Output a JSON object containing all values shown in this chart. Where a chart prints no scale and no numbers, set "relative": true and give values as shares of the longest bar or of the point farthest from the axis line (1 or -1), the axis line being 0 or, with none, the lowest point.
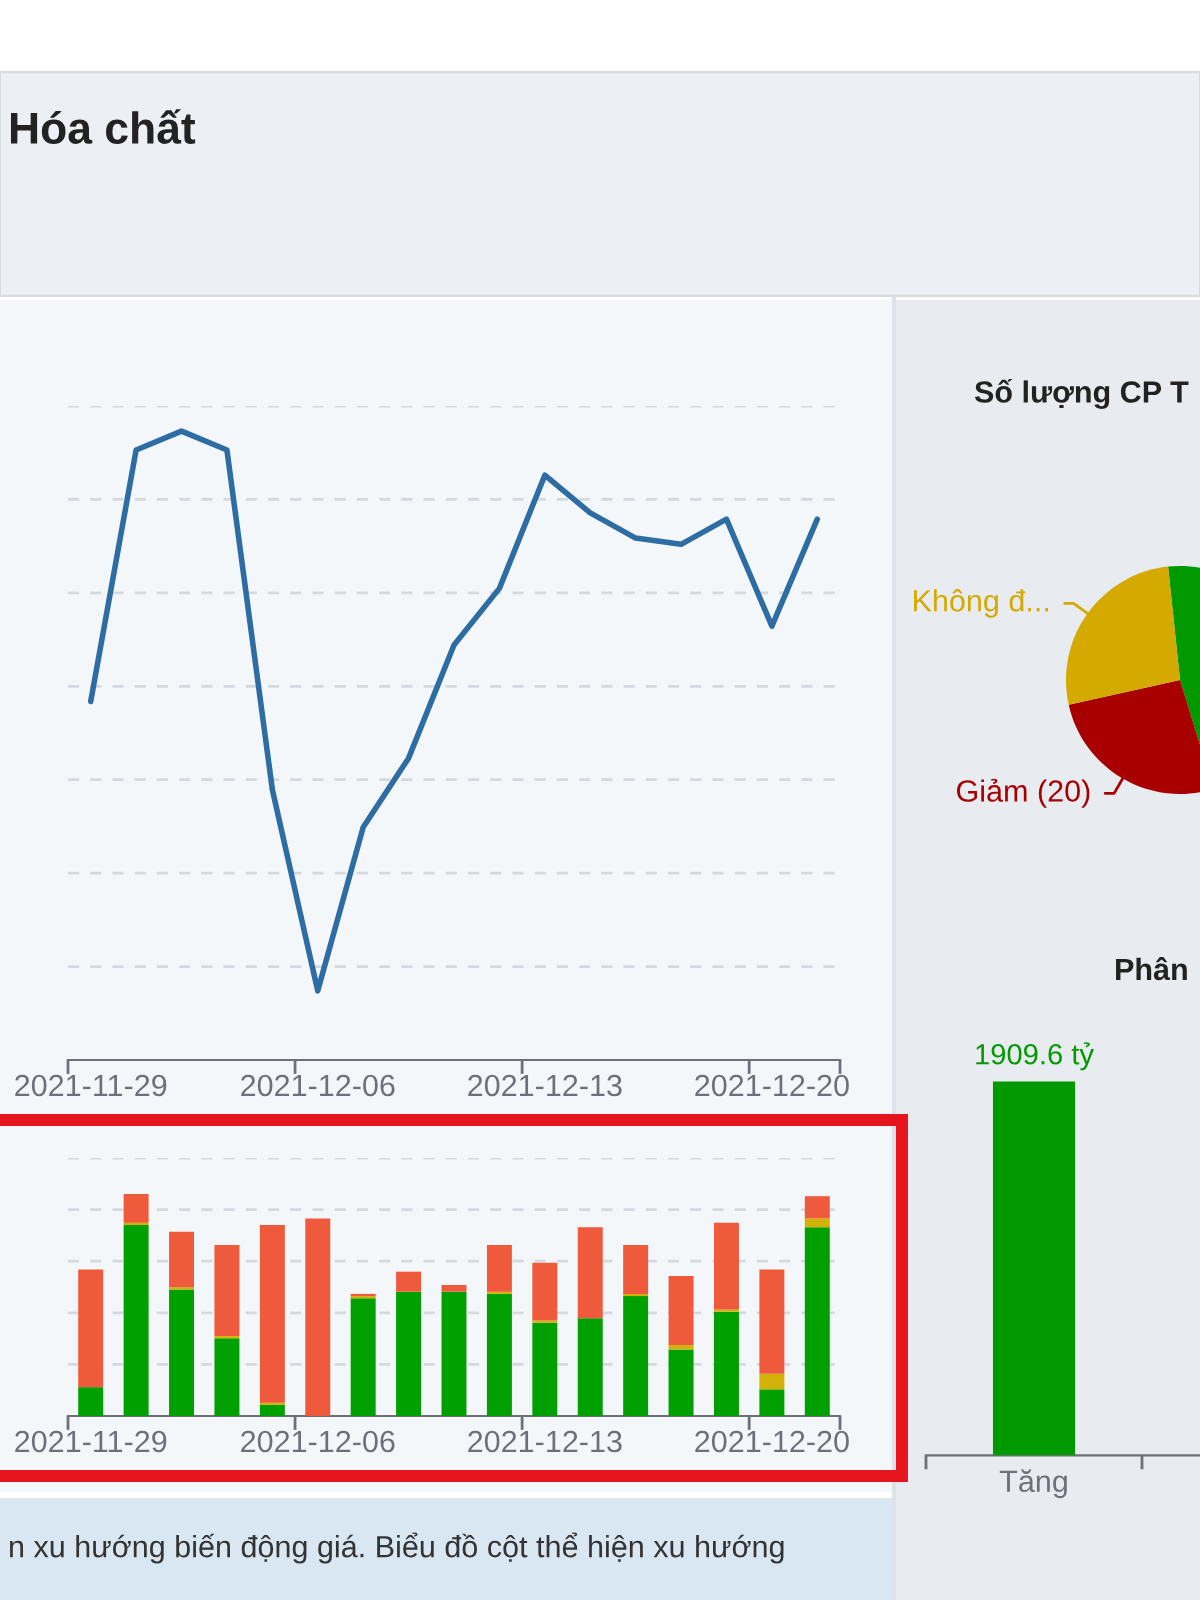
{
  "chart_data": [
    {
      "type": "line",
      "title": "Hóa chất",
      "relative": true,
      "grid": "y",
      "categories": [
        "2021-11-29",
        null,
        null,
        null,
        null,
        "2021-12-06",
        null,
        null,
        null,
        null,
        "2021-12-13",
        null,
        null,
        null,
        null,
        "2021-12-20",
        null
      ],
      "color": "#2d6da3",
      "values": [
        0.57,
        0.97,
        1,
        0.97,
        0.43,
        0.11,
        0.37,
        0.48,
        0.66,
        0.75,
        0.93,
        0.87,
        0.83,
        0.82,
        0.86,
        0.69,
        0.86
      ]
    },
    {
      "type": "bar",
      "stacked": true,
      "relative": true,
      "grid": "y",
      "categories": [
        "2021-11-29",
        null,
        null,
        null,
        null,
        "2021-12-06",
        null,
        null,
        null,
        null,
        "2021-12-13",
        null,
        null,
        null,
        null,
        "2021-12-20",
        null
      ],
      "series": [
        {
          "color": "#00a000",
          "values": [
            0.13,
            0.86,
            0.57,
            0.35,
            0.05,
            0,
            0.53,
            0.56,
            0.56,
            0.55,
            0.42,
            0.44,
            0.54,
            0.3,
            0.47,
            0.12,
            0.85
          ]
        },
        {
          "color": "#d4b106",
          "values": [
            0,
            0.01,
            0.01,
            0.01,
            0.01,
            0,
            0.01,
            0,
            0,
            0.01,
            0.01,
            0,
            0.01,
            0.02,
            0.01,
            0.07,
            0.04
          ]
        },
        {
          "color": "#ef5a3d",
          "values": [
            0.53,
            0.13,
            0.25,
            0.41,
            0.8,
            0.89,
            0.01,
            0.09,
            0.03,
            0.21,
            0.26,
            0.41,
            0.22,
            0.31,
            0.39,
            0.47,
            0.1
          ]
        }
      ],
      "annotations": [
        "n xu hướng biến động giá. Biểu đồ cột thể hiện xu hướng"
      ]
    },
    {
      "type": "pie",
      "title": "Số lượng CP T",
      "categories": [
        null,
        "Giảm (20)",
        "Không đ..."
      ],
      "values": [
        46.9,
        26.3,
        26.8
      ],
      "colors": [
        "#009900",
        "#a80000",
        "#d4aa00"
      ]
    },
    {
      "type": "bar",
      "title": "Phân",
      "categories": [
        "Tăng"
      ],
      "values": [
        1909.6
      ],
      "colors": [
        "#009900"
      ],
      "value_labels": [
        "1909.6 tỷ"
      ]
    }
  ]
}
